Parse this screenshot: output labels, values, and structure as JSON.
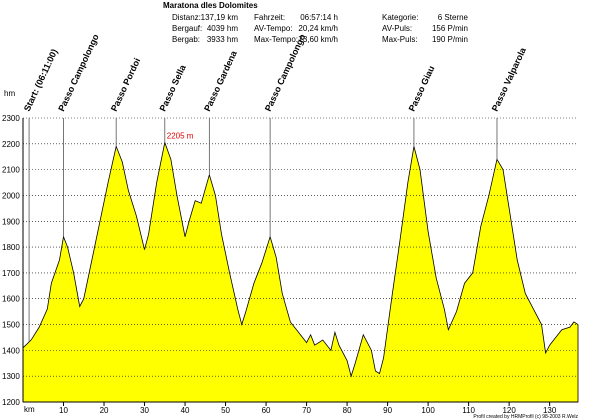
{
  "chart_data": {
    "type": "area",
    "title": "Maratona dles Dolomites",
    "stats": [
      [
        "Distanz:",
        "137,19 km",
        "Fahrzeit:",
        "06:57:14 h",
        "Kategorie:",
        "6 Sterne"
      ],
      [
        "Bergauf:",
        "4039 hm",
        "AV-Tempo:",
        "20,24 km/h",
        "AV-Puls:",
        "156 P/min"
      ],
      [
        "Bergab:",
        "3933 hm",
        "Max-Tempo:",
        "73,60 km/h",
        "Max-Puls:",
        "190 P/min"
      ]
    ],
    "ylabel": "hm",
    "xlabel": "km",
    "footer": "Profil created by HRMProfil (c) 98-2003 R.Welz",
    "x": [
      0,
      2,
      4,
      6,
      7,
      9,
      10,
      11,
      12.5,
      14,
      15,
      17,
      19,
      21,
      23,
      24.5,
      26,
      28,
      30,
      31,
      33,
      35,
      36.5,
      38,
      40,
      41,
      42.5,
      44,
      46,
      47.5,
      49,
      51,
      53,
      54,
      55,
      57,
      59,
      61,
      62.5,
      64,
      66,
      68,
      70,
      71,
      72,
      74,
      76,
      77,
      78,
      80,
      81,
      82,
      84,
      86,
      87,
      88,
      89,
      91,
      93,
      95,
      96.5,
      98,
      100,
      102,
      104,
      105,
      107,
      109,
      111,
      113,
      115,
      117,
      118.5,
      120,
      122,
      124,
      126,
      128,
      129,
      130,
      131,
      133,
      135,
      136,
      137
    ],
    "values": [
      1410,
      1440,
      1490,
      1560,
      1660,
      1750,
      1840,
      1800,
      1700,
      1570,
      1600,
      1750,
      1900,
      2050,
      2190,
      2130,
      2020,
      1920,
      1790,
      1850,
      2050,
      2205,
      2140,
      2000,
      1840,
      1900,
      1980,
      1970,
      2080,
      2000,
      1850,
      1700,
      1560,
      1500,
      1550,
      1660,
      1740,
      1840,
      1760,
      1620,
      1510,
      1470,
      1430,
      1460,
      1420,
      1440,
      1400,
      1470,
      1420,
      1360,
      1300,
      1350,
      1460,
      1400,
      1320,
      1310,
      1370,
      1600,
      1820,
      2050,
      2190,
      2100,
      1860,
      1680,
      1560,
      1480,
      1550,
      1660,
      1700,
      1880,
      2000,
      2140,
      2100,
      1950,
      1750,
      1620,
      1560,
      1500,
      1390,
      1420,
      1440,
      1480,
      1490,
      1510,
      1500
    ],
    "color": "#ffff00",
    "xlim": [
      0,
      137
    ],
    "ylim": [
      1200,
      2300
    ],
    "xticks": [
      10,
      20,
      30,
      40,
      50,
      60,
      70,
      80,
      90,
      100,
      110,
      120,
      130
    ],
    "yticks": [
      1200,
      1300,
      1400,
      1500,
      1600,
      1700,
      1800,
      1900,
      2000,
      2100,
      2200,
      2300
    ],
    "grid": true,
    "markers": [
      {
        "label": "Start: (06:11:00)",
        "x": 1.5
      },
      {
        "label": "Passo Campolongo",
        "x": 10
      },
      {
        "label": "Passo Pordoi",
        "x": 23
      },
      {
        "label": "Passo Sella",
        "x": 35
      },
      {
        "label": "Passo Gardena",
        "x": 46
      },
      {
        "label": "Passo Campolongo",
        "x": 61
      },
      {
        "label": "Passo Giau",
        "x": 96.5
      },
      {
        "label": "Passo Valparola",
        "x": 117
      }
    ],
    "annotations": [
      {
        "text": "2205 m",
        "x": 35,
        "y": 2205
      }
    ]
  }
}
